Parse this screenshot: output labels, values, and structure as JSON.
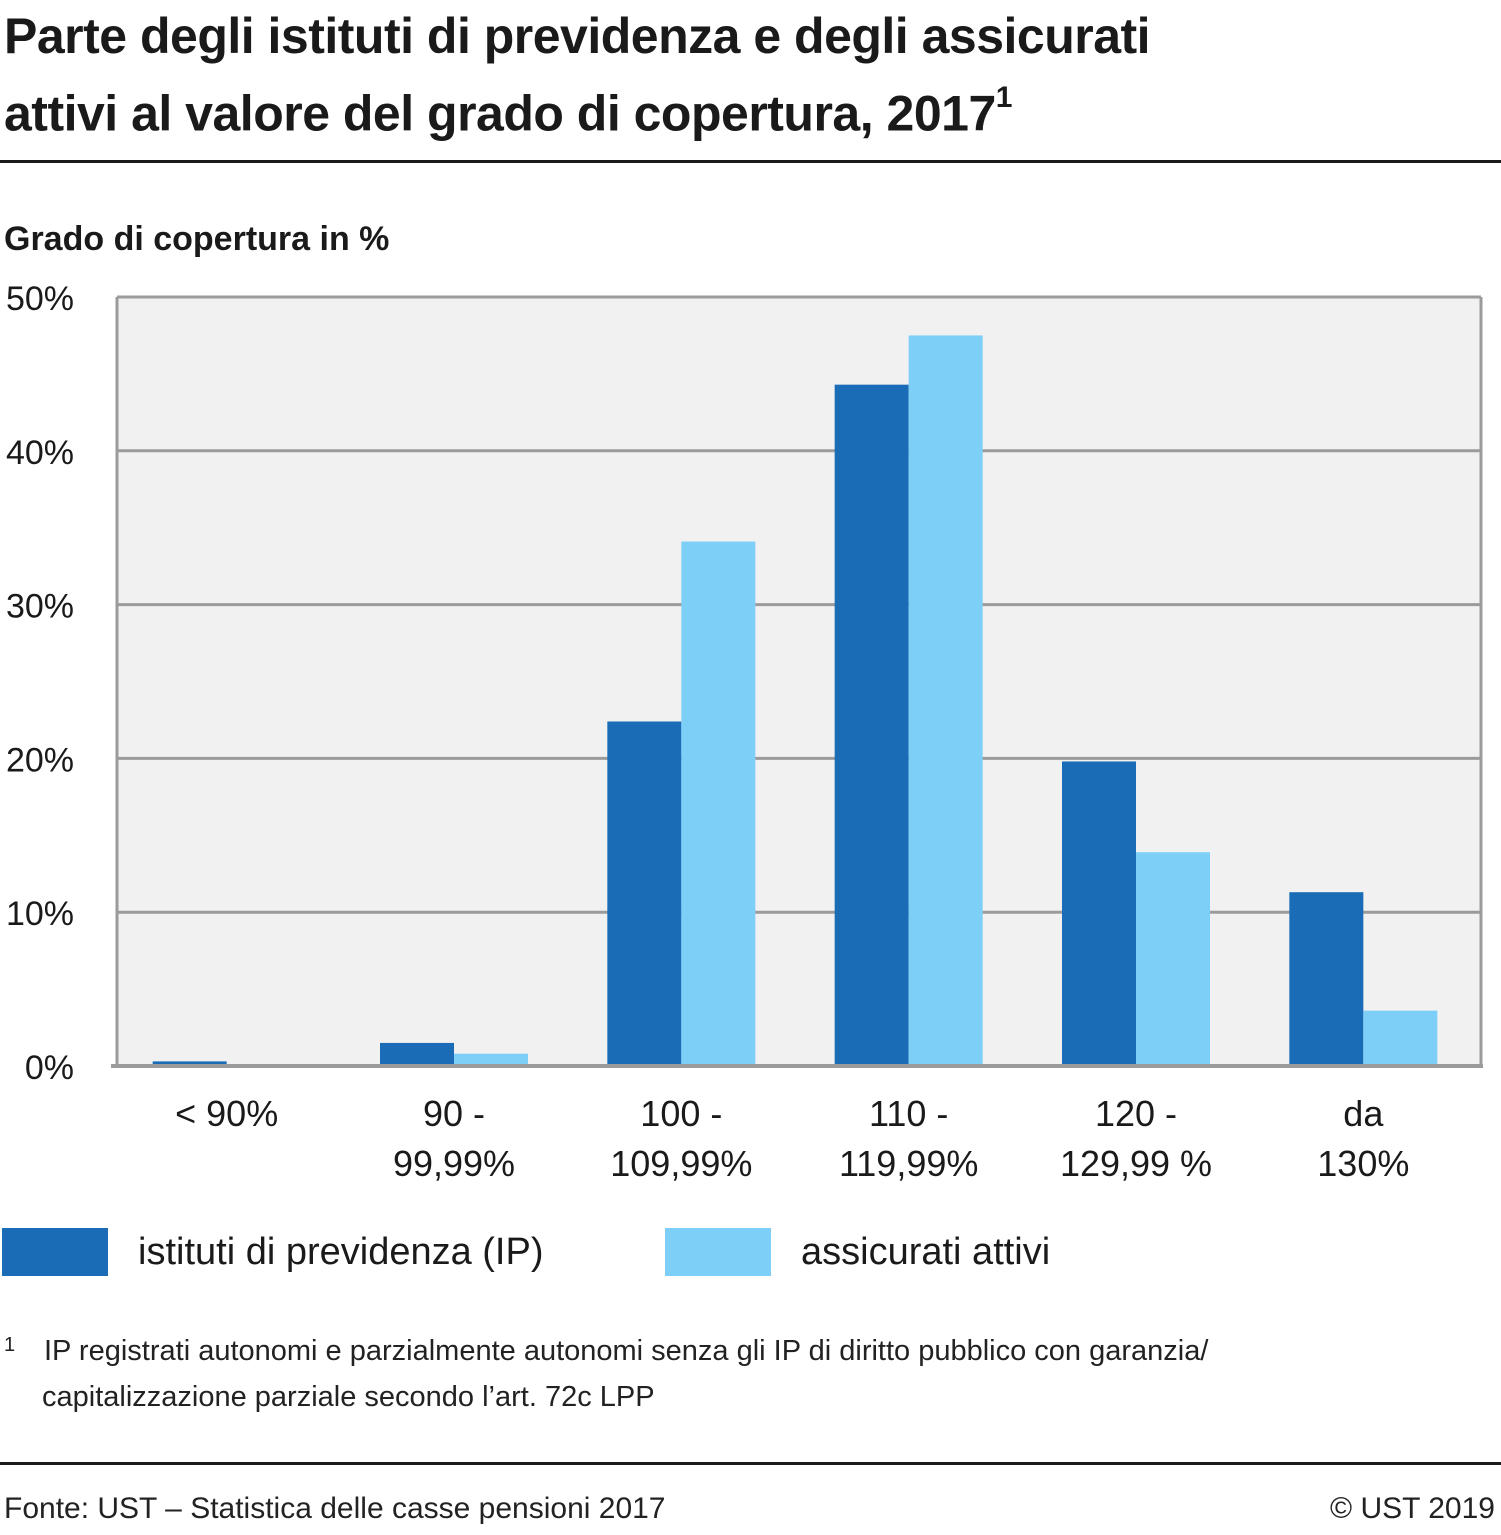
{
  "header": {
    "title_line1": "Parte degli istituti di previdenza e degli assicurati",
    "title_line2": "attivi al valore del grado di copertura, 2017",
    "title_footnote_mark": "1"
  },
  "colors": {
    "ip": "#1a6cb7",
    "attivi": "#7dcff8",
    "plot_bg": "#f1f1f1",
    "grid": "#9b9b9b"
  },
  "chart_data": {
    "type": "bar",
    "title": "Parte degli istituti di previdenza e degli assicurati attivi al valore del grado di copertura, 2017",
    "ylabel": "Grado di copertura in %",
    "xlabel": "",
    "ylim": [
      0,
      50
    ],
    "yticks": [
      0,
      10,
      20,
      30,
      40,
      50
    ],
    "ytick_labels": [
      "0%",
      "10%",
      "20%",
      "30%",
      "40%",
      "50%"
    ],
    "grid": true,
    "legend_position": "bottom",
    "categories": [
      [
        "< 90%"
      ],
      [
        "90 -",
        "99,99%"
      ],
      [
        "100 -",
        "109,99%"
      ],
      [
        "110 -",
        "119,99%"
      ],
      [
        "120 -",
        "129,99 %"
      ],
      [
        "da",
        "130%"
      ]
    ],
    "series": [
      {
        "name": "istituti di previdenza (IP)",
        "color": "#1a6cb7",
        "values": [
          0.3,
          1.5,
          22.4,
          44.3,
          19.8,
          11.3
        ]
      },
      {
        "name": "assicurati attivi",
        "color": "#7dcff8",
        "values": [
          0.0,
          0.8,
          34.1,
          47.5,
          13.9,
          3.6
        ]
      }
    ]
  },
  "legend": {
    "items": [
      {
        "label": "istituti di previdenza (IP)"
      },
      {
        "label": "assicurati attivi"
      }
    ]
  },
  "footnote": {
    "mark": "1",
    "line1": "IP registrati autonomi e parzialmente autonomi senza gli IP di diritto pubblico con garanzia/",
    "line2": "capitalizzazione parziale secondo l’art. 72c LPP"
  },
  "footer": {
    "source": "Fonte: UST – Statistica delle casse pensioni 2017",
    "copyright": "© UST 2019"
  }
}
